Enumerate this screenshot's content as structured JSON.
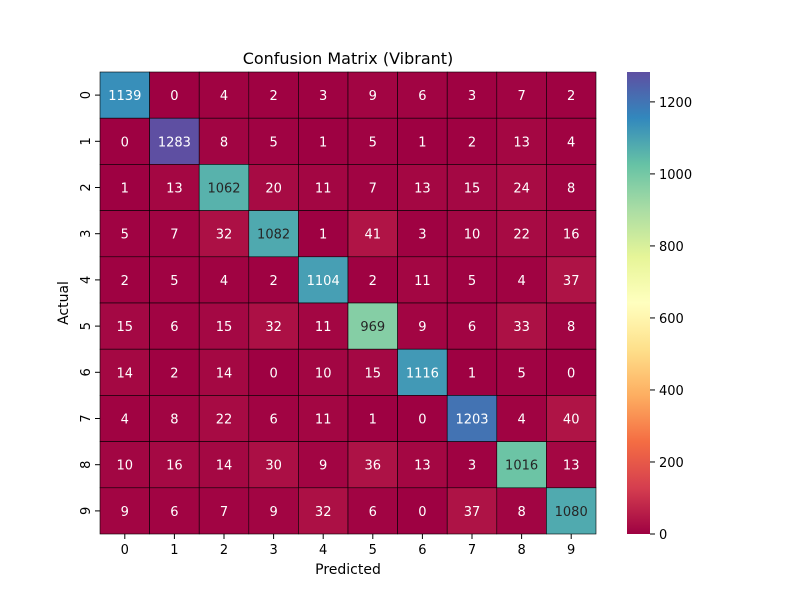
{
  "chart_data": {
    "type": "heatmap",
    "title": "Confusion Matrix (Vibrant)",
    "xlabel": "Predicted",
    "ylabel": "Actual",
    "x_categories": [
      "0",
      "1",
      "2",
      "3",
      "4",
      "5",
      "6",
      "7",
      "8",
      "9"
    ],
    "y_categories": [
      "0",
      "1",
      "2",
      "3",
      "4",
      "5",
      "6",
      "7",
      "8",
      "9"
    ],
    "values": [
      [
        1139,
        0,
        4,
        2,
        3,
        9,
        6,
        3,
        7,
        2
      ],
      [
        0,
        1283,
        8,
        5,
        1,
        5,
        1,
        2,
        13,
        4
      ],
      [
        1,
        13,
        1062,
        20,
        11,
        7,
        13,
        15,
        24,
        8
      ],
      [
        5,
        7,
        32,
        1082,
        1,
        41,
        3,
        10,
        22,
        16
      ],
      [
        2,
        5,
        4,
        2,
        1104,
        2,
        11,
        5,
        4,
        37
      ],
      [
        15,
        6,
        15,
        32,
        11,
        969,
        9,
        6,
        33,
        8
      ],
      [
        14,
        2,
        14,
        0,
        10,
        15,
        1116,
        1,
        5,
        0
      ],
      [
        4,
        8,
        22,
        6,
        11,
        1,
        0,
        1203,
        4,
        40
      ],
      [
        10,
        16,
        14,
        30,
        9,
        36,
        13,
        3,
        1016,
        13
      ],
      [
        9,
        6,
        7,
        9,
        32,
        6,
        0,
        37,
        8,
        1080
      ]
    ],
    "colormap": "Spectral",
    "vmin": 0,
    "vmax": 1283,
    "colorbar_ticks": [
      0,
      200,
      400,
      600,
      800,
      1000,
      1200
    ],
    "grid_color": "#000000"
  }
}
